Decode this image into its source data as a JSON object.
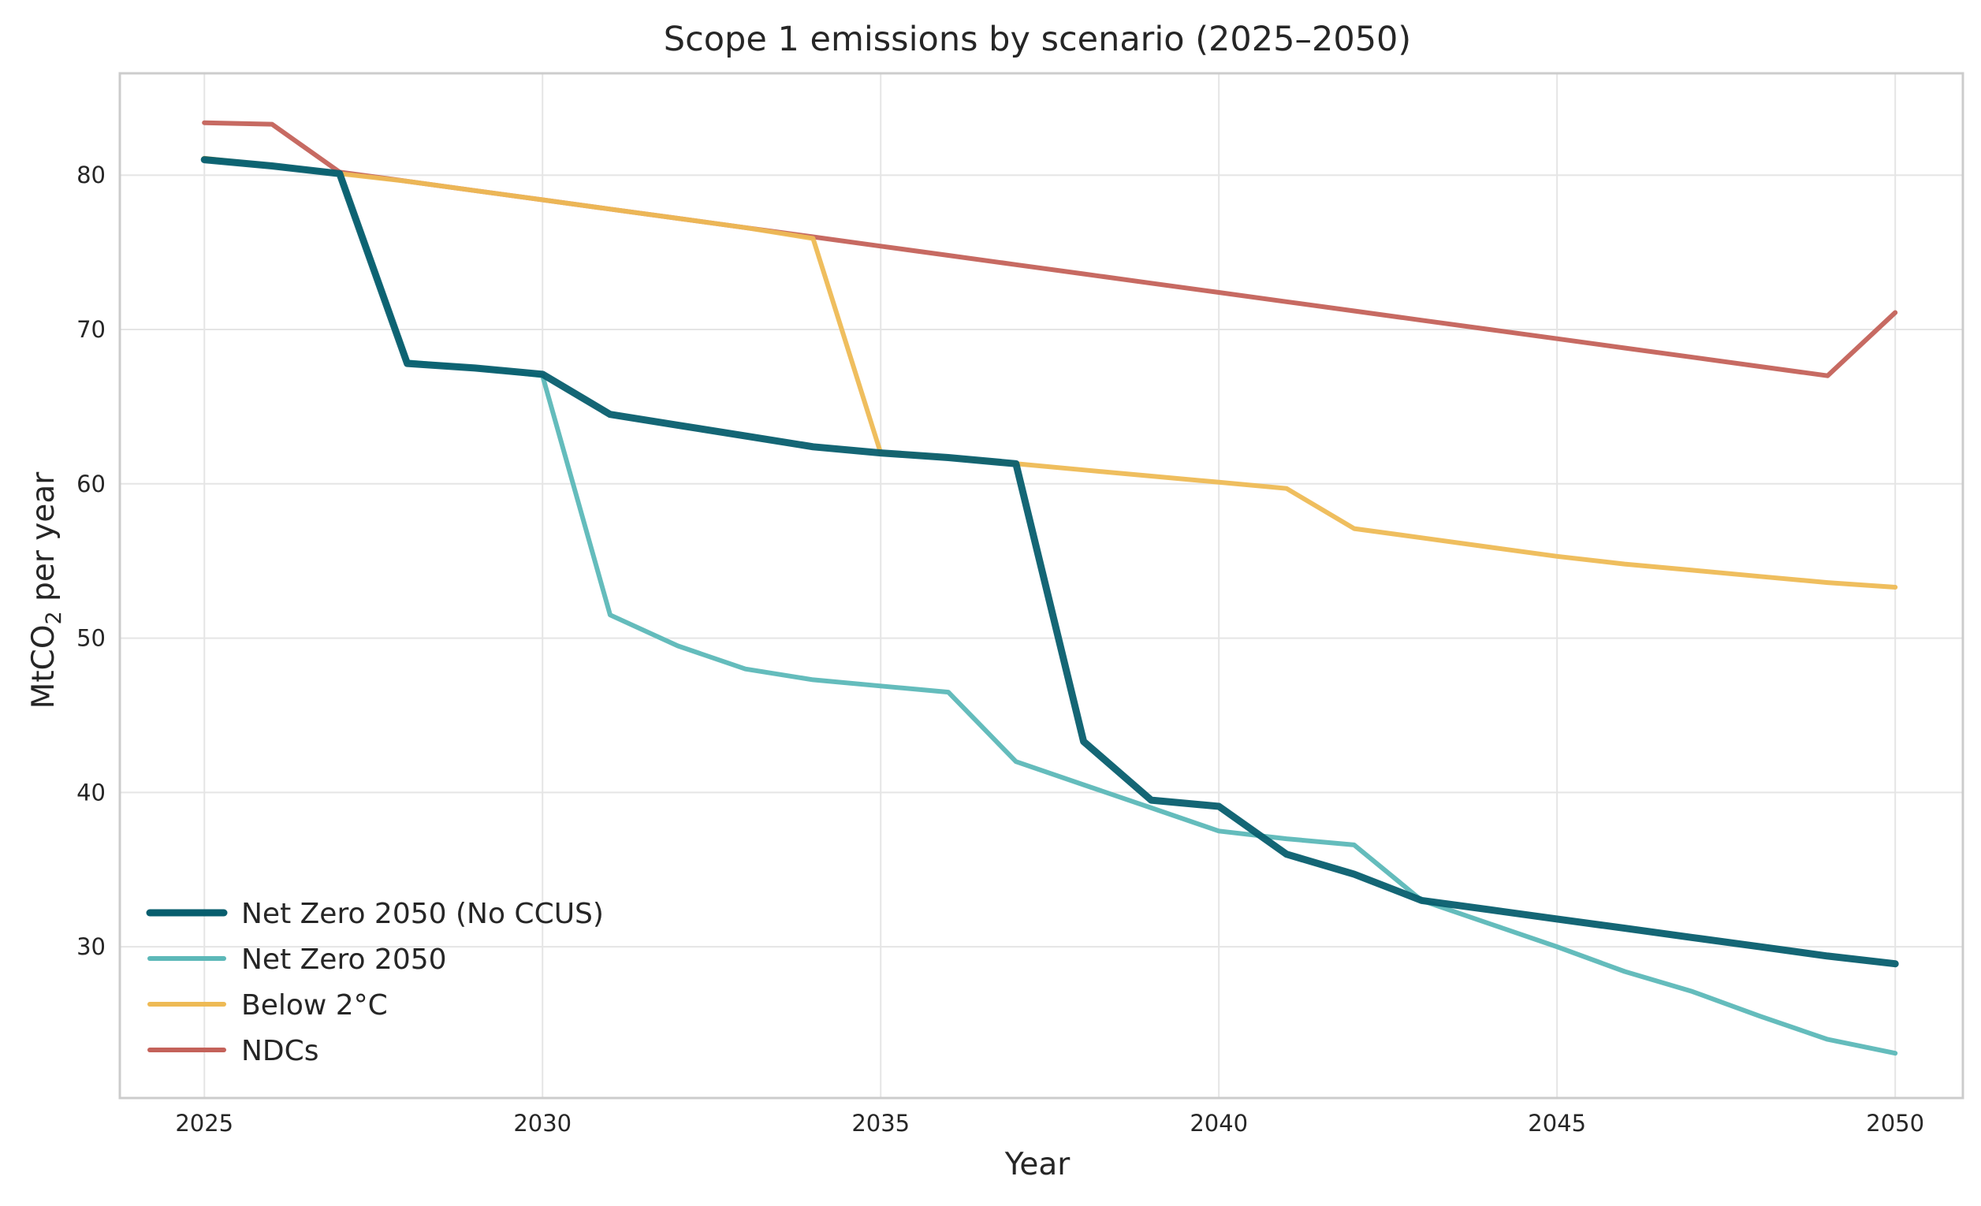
{
  "chart_data": {
    "type": "line",
    "title": "Scope 1 emissions by scenario (2025–2050)",
    "xlabel": "Year",
    "ylabel_main": "MtCO",
    "ylabel_sub": "2",
    "ylabel_rest": " per year",
    "xlim": [
      2023.75,
      2051.0
    ],
    "ylim": [
      20.2,
      86.6
    ],
    "x_ticks": [
      2025,
      2030,
      2035,
      2040,
      2045,
      2050
    ],
    "y_ticks": [
      30,
      40,
      50,
      60,
      70,
      80
    ],
    "grid": true,
    "legend_position": "lower-left",
    "x": [
      2025,
      2026,
      2027,
      2028,
      2029,
      2030,
      2031,
      2032,
      2033,
      2034,
      2035,
      2036,
      2037,
      2038,
      2039,
      2040,
      2041,
      2042,
      2043,
      2044,
      2045,
      2046,
      2047,
      2048,
      2049,
      2050
    ],
    "series": [
      {
        "name": "NDCs",
        "color": "#c4625a",
        "width": 6,
        "values": [
          83.4,
          83.3,
          80.2,
          79.6,
          79.0,
          78.4,
          77.8,
          77.2,
          76.6,
          76.0,
          75.4,
          74.8,
          74.2,
          73.6,
          73.0,
          72.4,
          71.8,
          71.2,
          70.6,
          70.0,
          69.4,
          68.8,
          68.2,
          67.6,
          67.0,
          71.1
        ]
      },
      {
        "name": "Below 2°C",
        "color": "#eeba55",
        "width": 6,
        "values": [
          81.1,
          80.6,
          80.1,
          79.6,
          79.0,
          78.4,
          77.8,
          77.2,
          76.6,
          75.9,
          62.0,
          61.7,
          61.3,
          60.9,
          60.5,
          60.1,
          59.7,
          57.1,
          56.5,
          55.9,
          55.3,
          54.8,
          54.4,
          54.0,
          53.6,
          53.3
        ]
      },
      {
        "name": "Net Zero 2050",
        "color": "#5cb8b8",
        "width": 6,
        "values": [
          81.0,
          80.6,
          80.1,
          67.9,
          67.5,
          67.0,
          51.5,
          49.5,
          48.0,
          47.3,
          46.9,
          46.5,
          42.0,
          40.5,
          39.0,
          37.5,
          37.0,
          36.6,
          33.0,
          31.5,
          30.0,
          28.4,
          27.1,
          25.5,
          24.0,
          23.1
        ]
      },
      {
        "name": "Net Zero 2050 (No CCUS)",
        "color": "#075e6e",
        "width": 9,
        "values": [
          81.0,
          80.6,
          80.1,
          67.8,
          67.5,
          67.1,
          64.5,
          63.8,
          63.1,
          62.4,
          62.0,
          61.7,
          61.3,
          43.3,
          39.5,
          39.1,
          36.0,
          34.7,
          33.0,
          32.4,
          31.8,
          31.2,
          30.6,
          30.0,
          29.4,
          28.9
        ]
      }
    ],
    "legend_order": [
      "Net Zero 2050 (No CCUS)",
      "Net Zero 2050",
      "Below 2°C",
      "NDCs"
    ]
  }
}
